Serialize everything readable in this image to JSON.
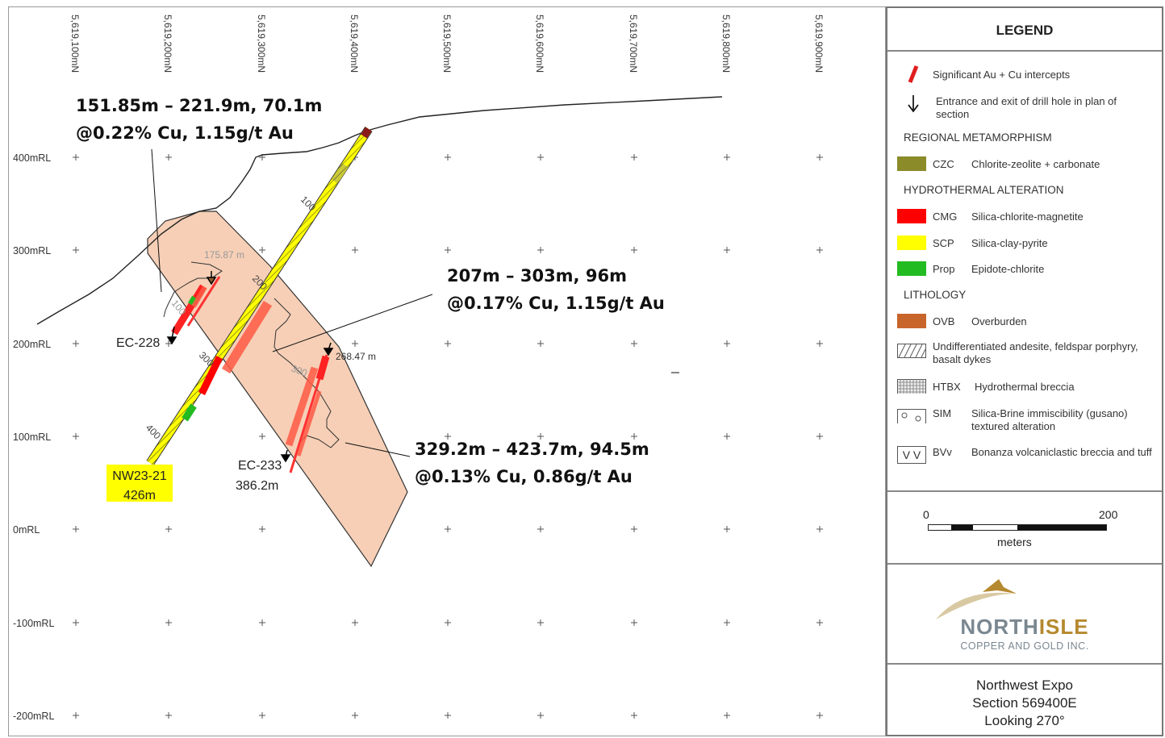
{
  "map": {
    "northing_labels": [
      "5,619,100mN",
      "5,619,200mN",
      "5,619,300mN",
      "5,619,400mN",
      "5,619,500mN",
      "5,619,600mN",
      "5,619,700mN",
      "5,619,800mN",
      "5,619,900mN"
    ],
    "elevation_labels": [
      "400mRL",
      "300mRL",
      "200mRL",
      "100mRL",
      "0mRL",
      "-100mRL",
      "-200mRL"
    ],
    "holes": {
      "ec228": {
        "name": "EC-228",
        "depth_label": "175.87 m"
      },
      "ec233": {
        "name": "EC-233",
        "depth_label": "386.2m",
        "end_label": "268.47 m"
      },
      "nw23": {
        "name": "NW23-21",
        "depth_label": "426m"
      }
    },
    "depth_ticks": [
      "100",
      "200",
      "300",
      "400",
      "100",
      "200",
      "300"
    ],
    "intercepts": [
      {
        "line1": "151.85m – 221.9m, 70.1m",
        "line2": "@0.22% Cu, 1.15g/t Au"
      },
      {
        "line1": "207m – 303m, 96m",
        "line2": "@0.17% Cu, 1.15g/t Au"
      },
      {
        "line1": "329.2m – 423.7m, 94.5m",
        "line2": "@0.13% Cu, 0.86g/t Au"
      }
    ],
    "colors": {
      "envelope_fill": "#f6cfb6",
      "czc": "#8b8b2a",
      "cmg": "#ff0000",
      "scp": "#ffff00",
      "prop": "#22bb22",
      "ovb": "#c8652a",
      "intercept": "#ff3b3b",
      "label_highlight": "#ffff00"
    }
  },
  "legend": {
    "title": "LEGEND",
    "significant": "Significant Au + Cu intercepts",
    "entrance_exit": "Entrance and exit of drill hole in plan of section",
    "regional_heading": "REGIONAL METAMORPHISM",
    "czc_code": "CZC",
    "czc_desc": "Chlorite-zeolite + carbonate",
    "hydro_heading": "HYDROTHERMAL ALTERATION",
    "cmg_code": "CMG",
    "cmg_desc": "Silica-chlorite-magnetite",
    "scp_code": "SCP",
    "scp_desc": "Silica-clay-pyrite",
    "prop_code": "Prop",
    "prop_desc": "Epidote-chlorite",
    "lith_heading": "LITHOLOGY",
    "ovb_code": "OVB",
    "ovb_desc": "Overburden",
    "andesite_desc": "Undifferentiated andesite, feldspar porphyry, basalt dykes",
    "htbx_code": "HTBX",
    "htbx_desc": "Hydrothermal breccia",
    "sim_code": "SIM",
    "sim_desc": "Silica-Brine immiscibility (gusano) textured alteration",
    "bvv_code": "BVv",
    "bvv_desc": "Bonanza volcaniclastic breccia and tuff",
    "bvv_symbol": "V V"
  },
  "scale": {
    "min": "0",
    "max": "200",
    "unit": "meters"
  },
  "logo": {
    "name_part1": "NORTH",
    "name_part2": "ISLE",
    "tagline": "COPPER AND GOLD INC."
  },
  "section": {
    "line1": "Northwest Expo",
    "line2": "Section 569400E",
    "line3": "Looking 270°"
  }
}
